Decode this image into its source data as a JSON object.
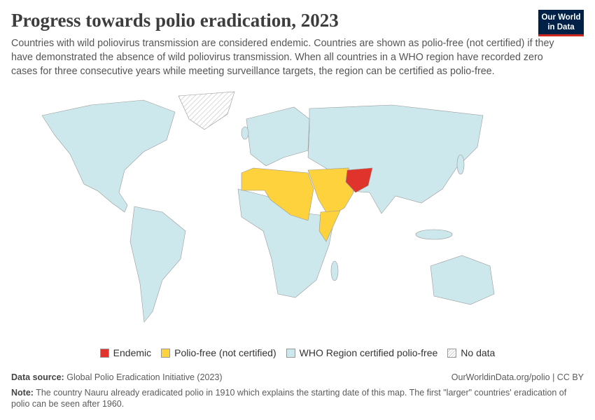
{
  "header": {
    "title": "Progress towards polio eradication, 2023",
    "subtitle": "Countries with wild poliovirus transmission are considered endemic. Countries are shown as polio-free (not certified) if they have demonstrated the absence of wild poliovirus transmission. When all countries in a WHO region have recorded zero cases for three consecutive years while meeting surveillance targets, the region can be certified as polio-free."
  },
  "logo": {
    "line1": "Our World",
    "line2": "in Data"
  },
  "legend": [
    {
      "label": "Endemic",
      "color": "#e0332c"
    },
    {
      "label": "Polio-free (not certified)",
      "color": "#fdd23d"
    },
    {
      "label": "WHO Region certified polio-free",
      "color": "#cde8ec"
    },
    {
      "label": "No data"
    }
  ],
  "footer": {
    "source_label": "Data source:",
    "source": "Global Polio Eradication Initiative (2023)",
    "url": "OurWorldinData.org/polio | CC BY",
    "note_label": "Note:",
    "note": "The country Nauru already eradicated polio in 1910 which explains the starting date of this map. The first \"larger\" countries' eradication of polio can be seen after 1960."
  }
}
